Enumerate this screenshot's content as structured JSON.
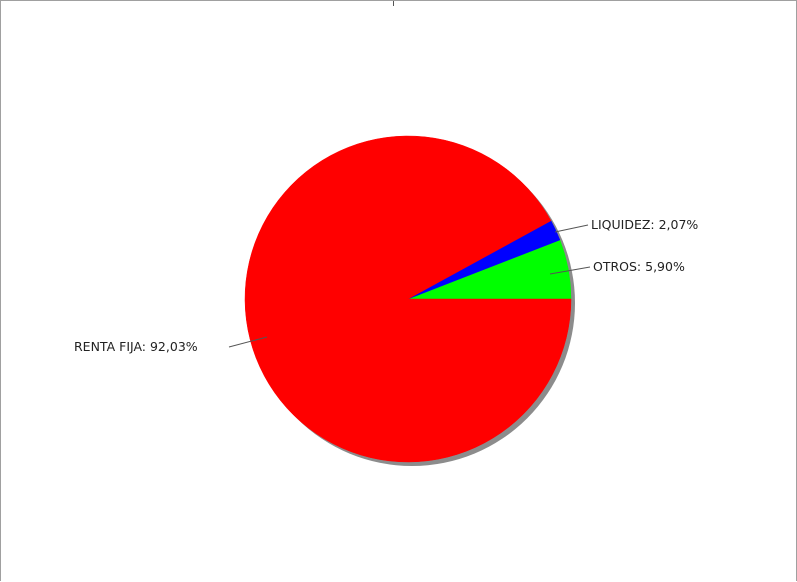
{
  "chart_data": {
    "type": "pie",
    "slices": [
      {
        "name": "RENTA FIJA",
        "value": 92.03,
        "label": "RENTA FIJA: 92,03%",
        "color": "#ff0000"
      },
      {
        "name": "LIQUIDEZ",
        "value": 2.07,
        "label": "LIQUIDEZ: 2,07%",
        "color": "#0000ff"
      },
      {
        "name": "OTROS",
        "value": 5.9,
        "label": "OTROS: 5,90%",
        "color": "#00ff00"
      }
    ],
    "start_angle_deg": 0,
    "direction": "counterclockwise",
    "shadow": true
  }
}
